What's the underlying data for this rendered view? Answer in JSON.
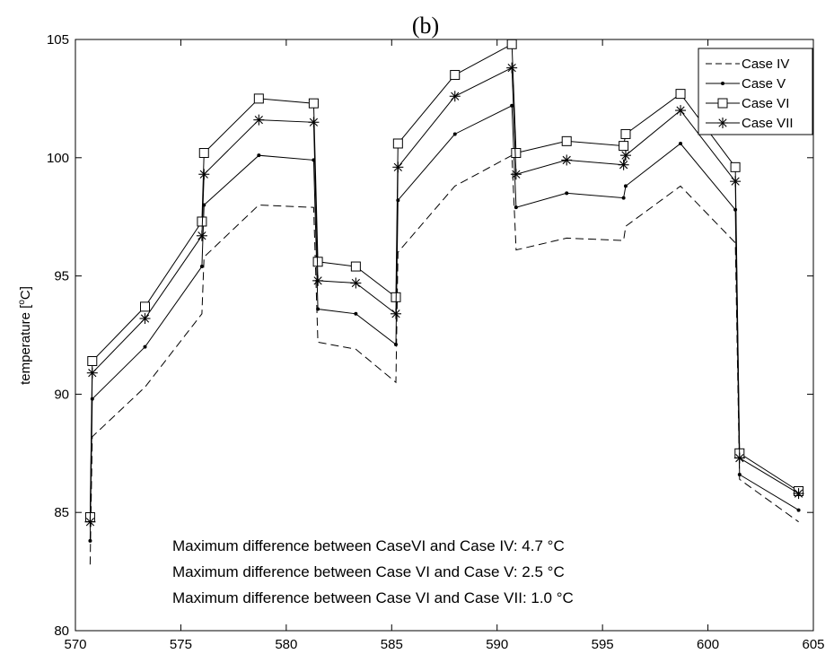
{
  "chart_data": {
    "type": "line",
    "title": "(b)",
    "xlabel": "",
    "ylabel_main": "temperature [",
    "ylabel_sup": "o",
    "ylabel_end": "C]",
    "xlim": [
      570,
      605
    ],
    "ylim": [
      80,
      105
    ],
    "x_ticks": [
      570,
      575,
      580,
      585,
      590,
      595,
      600,
      605
    ],
    "y_ticks": [
      80,
      85,
      90,
      95,
      100,
      105
    ],
    "grid": false,
    "legend_position": "top-right",
    "series": [
      {
        "name": "Case IV",
        "style": "dashed",
        "marker": "none",
        "color": "#000000",
        "points": [
          [
            570.7,
            82.8
          ],
          [
            570.8,
            88.2
          ],
          [
            573.3,
            90.3
          ],
          [
            576.0,
            93.4
          ],
          [
            576.1,
            95.8
          ],
          [
            578.7,
            98.0
          ],
          [
            581.3,
            97.9
          ],
          [
            581.5,
            92.2
          ],
          [
            583.3,
            91.9
          ],
          [
            585.2,
            90.5
          ],
          [
            585.3,
            96.0
          ],
          [
            588.0,
            98.8
          ],
          [
            590.7,
            100.1
          ],
          [
            590.9,
            96.1
          ],
          [
            593.3,
            96.6
          ],
          [
            596.0,
            96.5
          ],
          [
            596.1,
            97.1
          ],
          [
            598.7,
            98.8
          ],
          [
            601.3,
            96.4
          ],
          [
            601.5,
            86.4
          ],
          [
            604.3,
            84.6
          ]
        ]
      },
      {
        "name": "Case V",
        "style": "solid",
        "marker": "dot",
        "color": "#000000",
        "points": [
          [
            570.7,
            83.8
          ],
          [
            570.8,
            89.8
          ],
          [
            573.3,
            92.0
          ],
          [
            576.0,
            95.4
          ],
          [
            576.1,
            98.0
          ],
          [
            578.7,
            100.1
          ],
          [
            581.3,
            99.9
          ],
          [
            581.5,
            93.6
          ],
          [
            583.3,
            93.4
          ],
          [
            585.2,
            92.1
          ],
          [
            585.3,
            98.2
          ],
          [
            588.0,
            101.0
          ],
          [
            590.7,
            102.2
          ],
          [
            590.9,
            97.9
          ],
          [
            593.3,
            98.5
          ],
          [
            596.0,
            98.3
          ],
          [
            596.1,
            98.8
          ],
          [
            598.7,
            100.6
          ],
          [
            601.3,
            97.8
          ],
          [
            601.5,
            86.6
          ],
          [
            604.3,
            85.1
          ]
        ]
      },
      {
        "name": "Case VI",
        "style": "solid",
        "marker": "square",
        "color": "#000000",
        "points": [
          [
            570.7,
            84.8
          ],
          [
            570.8,
            91.4
          ],
          [
            573.3,
            93.7
          ],
          [
            576.0,
            97.3
          ],
          [
            576.1,
            100.2
          ],
          [
            578.7,
            102.5
          ],
          [
            581.3,
            102.3
          ],
          [
            581.5,
            95.6
          ],
          [
            583.3,
            95.4
          ],
          [
            585.2,
            94.1
          ],
          [
            585.3,
            100.6
          ],
          [
            588.0,
            103.5
          ],
          [
            590.7,
            104.8
          ],
          [
            590.9,
            100.2
          ],
          [
            593.3,
            100.7
          ],
          [
            596.0,
            100.5
          ],
          [
            596.1,
            101.0
          ],
          [
            598.7,
            102.7
          ],
          [
            601.3,
            99.6
          ],
          [
            601.5,
            87.5
          ],
          [
            604.3,
            85.9
          ]
        ]
      },
      {
        "name": "Case VII",
        "style": "solid",
        "marker": "star",
        "color": "#000000",
        "points": [
          [
            570.7,
            84.6
          ],
          [
            570.8,
            90.9
          ],
          [
            573.3,
            93.2
          ],
          [
            576.0,
            96.7
          ],
          [
            576.1,
            99.3
          ],
          [
            578.7,
            101.6
          ],
          [
            581.3,
            101.5
          ],
          [
            581.5,
            94.8
          ],
          [
            583.3,
            94.7
          ],
          [
            585.2,
            93.4
          ],
          [
            585.3,
            99.6
          ],
          [
            588.0,
            102.6
          ],
          [
            590.7,
            103.8
          ],
          [
            590.9,
            99.3
          ],
          [
            593.3,
            99.9
          ],
          [
            596.0,
            99.7
          ],
          [
            596.1,
            100.1
          ],
          [
            598.7,
            102.0
          ],
          [
            601.3,
            99.0
          ],
          [
            601.5,
            87.3
          ],
          [
            604.3,
            85.8
          ]
        ]
      }
    ],
    "annotations": [
      "Maximum difference between CaseVI and Case IV: 4.7 °C",
      "Maximum difference between Case VI and Case V: 2.5 °C",
      "Maximum difference between Case VI and Case VII: 1.0 °C"
    ]
  }
}
